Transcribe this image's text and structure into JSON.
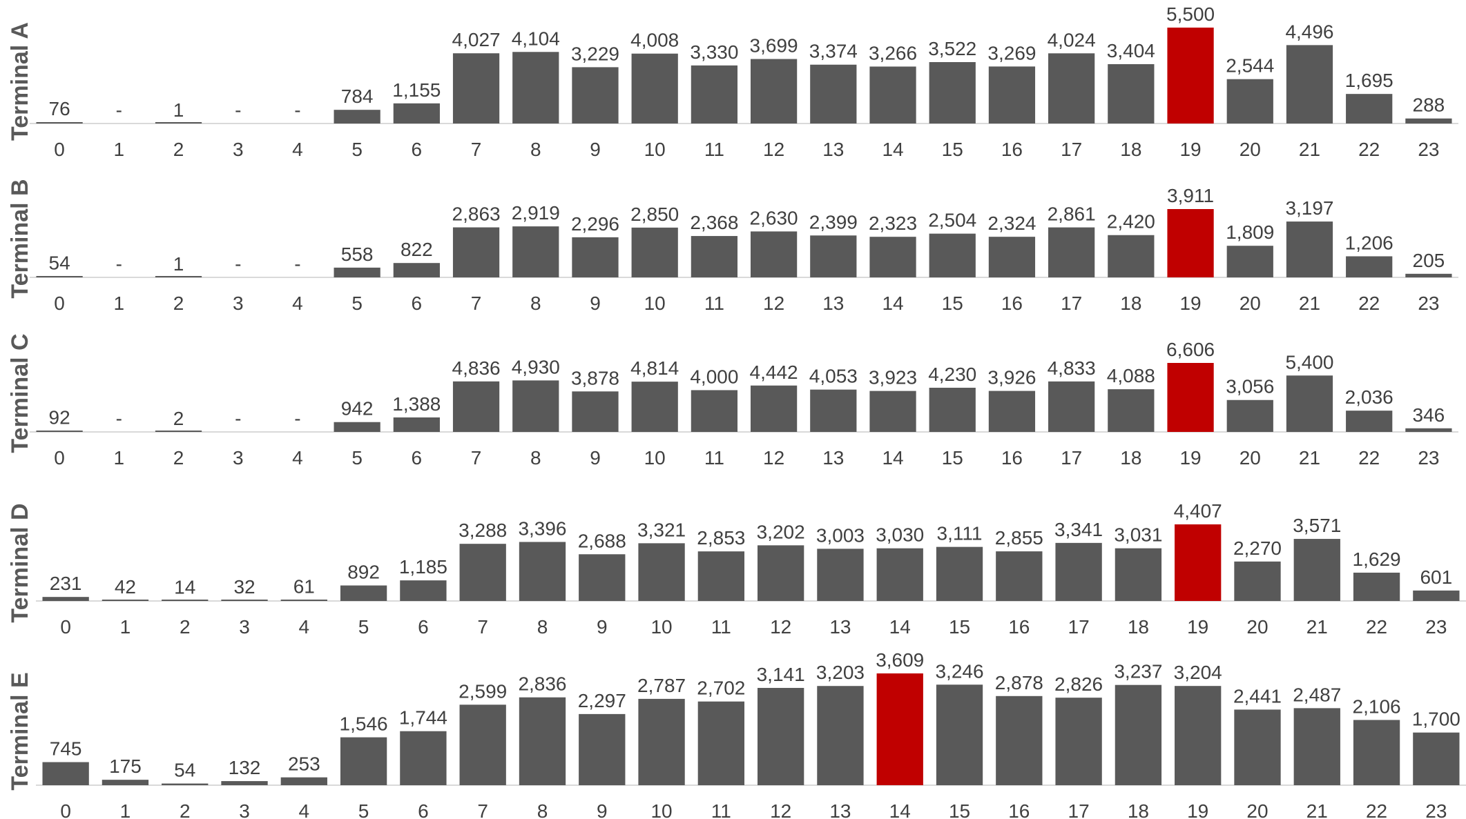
{
  "chart_data": [
    {
      "type": "bar",
      "title": "Terminal A",
      "categories": [
        "0",
        "1",
        "2",
        "3",
        "4",
        "5",
        "6",
        "7",
        "8",
        "9",
        "10",
        "11",
        "12",
        "13",
        "14",
        "15",
        "16",
        "17",
        "18",
        "19",
        "20",
        "21",
        "22",
        "23"
      ],
      "values": [
        76,
        0,
        1,
        0,
        0,
        784,
        1155,
        4027,
        4104,
        3229,
        4008,
        3330,
        3699,
        3374,
        3266,
        3522,
        3269,
        4024,
        3404,
        5500,
        2544,
        4496,
        1695,
        288
      ],
      "value_labels": [
        "76",
        "-",
        "1",
        "-",
        "-",
        "784",
        "1,155",
        "4,027",
        "4,104",
        "3,229",
        "4,008",
        "3,330",
        "3,699",
        "3,374",
        "3,266",
        "3,522",
        "3,269",
        "4,024",
        "3,404",
        "5,500",
        "2,544",
        "4,496",
        "1,695",
        "288"
      ],
      "highlight_index": 19,
      "ylim": [
        0,
        5500
      ]
    },
    {
      "type": "bar",
      "title": "Terminal B",
      "categories": [
        "0",
        "1",
        "2",
        "3",
        "4",
        "5",
        "6",
        "7",
        "8",
        "9",
        "10",
        "11",
        "12",
        "13",
        "14",
        "15",
        "16",
        "17",
        "18",
        "19",
        "20",
        "21",
        "22",
        "23"
      ],
      "values": [
        54,
        0,
        1,
        0,
        0,
        558,
        822,
        2863,
        2919,
        2296,
        2850,
        2368,
        2630,
        2399,
        2323,
        2504,
        2324,
        2861,
        2420,
        3911,
        1809,
        3197,
        1206,
        205
      ],
      "value_labels": [
        "54",
        "-",
        "1",
        "-",
        "-",
        "558",
        "822",
        "2,863",
        "2,919",
        "2,296",
        "2,850",
        "2,368",
        "2,630",
        "2,399",
        "2,323",
        "2,504",
        "2,324",
        "2,861",
        "2,420",
        "3,911",
        "1,809",
        "3,197",
        "1,206",
        "205"
      ],
      "highlight_index": 19,
      "ylim": [
        0,
        3911
      ]
    },
    {
      "type": "bar",
      "title": "Terminal C",
      "categories": [
        "0",
        "1",
        "2",
        "3",
        "4",
        "5",
        "6",
        "7",
        "8",
        "9",
        "10",
        "11",
        "12",
        "13",
        "14",
        "15",
        "16",
        "17",
        "18",
        "19",
        "20",
        "21",
        "22",
        "23"
      ],
      "values": [
        92,
        0,
        2,
        0,
        0,
        942,
        1388,
        4836,
        4930,
        3878,
        4814,
        4000,
        4442,
        4053,
        3923,
        4230,
        3926,
        4833,
        4088,
        6606,
        3056,
        5400,
        2036,
        346
      ],
      "value_labels": [
        "92",
        "-",
        "2",
        "-",
        "-",
        "942",
        "1,388",
        "4,836",
        "4,930",
        "3,878",
        "4,814",
        "4,000",
        "4,442",
        "4,053",
        "3,923",
        "4,230",
        "3,926",
        "4,833",
        "4,088",
        "6,606",
        "3,056",
        "5,400",
        "2,036",
        "346"
      ],
      "highlight_index": 19,
      "ylim": [
        0,
        6606
      ]
    },
    {
      "type": "bar",
      "title": "Terminal D",
      "categories": [
        "0",
        "1",
        "2",
        "3",
        "4",
        "5",
        "6",
        "7",
        "8",
        "9",
        "10",
        "11",
        "12",
        "13",
        "14",
        "15",
        "16",
        "17",
        "18",
        "19",
        "20",
        "21",
        "22",
        "23"
      ],
      "values": [
        231,
        42,
        14,
        32,
        61,
        892,
        1185,
        3288,
        3396,
        2688,
        3321,
        2853,
        3202,
        3003,
        3030,
        3111,
        2855,
        3341,
        3031,
        4407,
        2270,
        3571,
        1629,
        601
      ],
      "value_labels": [
        "231",
        "42",
        "14",
        "32",
        "61",
        "892",
        "1,185",
        "3,288",
        "3,396",
        "2,688",
        "3,321",
        "2,853",
        "3,202",
        "3,003",
        "3,030",
        "3,111",
        "2,855",
        "3,341",
        "3,031",
        "4,407",
        "2,270",
        "3,571",
        "1,629",
        "601"
      ],
      "highlight_index": 19,
      "ylim": [
        0,
        4407
      ]
    },
    {
      "type": "bar",
      "title": "Terminal E",
      "categories": [
        "0",
        "1",
        "2",
        "3",
        "4",
        "5",
        "6",
        "7",
        "8",
        "9",
        "10",
        "11",
        "12",
        "13",
        "14",
        "15",
        "16",
        "17",
        "18",
        "19",
        "20",
        "21",
        "22",
        "23"
      ],
      "values": [
        745,
        175,
        54,
        132,
        253,
        1546,
        1744,
        2599,
        2836,
        2297,
        2787,
        2702,
        3141,
        3203,
        3609,
        3246,
        2878,
        2826,
        3237,
        3204,
        2441,
        2487,
        2106,
        1700
      ],
      "value_labels": [
        "745",
        "175",
        "54",
        "132",
        "253",
        "1,546",
        "1,744",
        "2,599",
        "2,836",
        "2,297",
        "2,787",
        "2,702",
        "3,141",
        "3,203",
        "3,609",
        "3,246",
        "2,878",
        "2,826",
        "3,237",
        "3,204",
        "2,441",
        "2,487",
        "2,106",
        "1,700"
      ],
      "highlight_index": 14,
      "ylim": [
        0,
        3609
      ]
    }
  ],
  "colors": {
    "bar": "#595959",
    "highlight": "#c00000",
    "baseline": "#d9d9d9",
    "text": "#404040",
    "title": "#595959"
  }
}
